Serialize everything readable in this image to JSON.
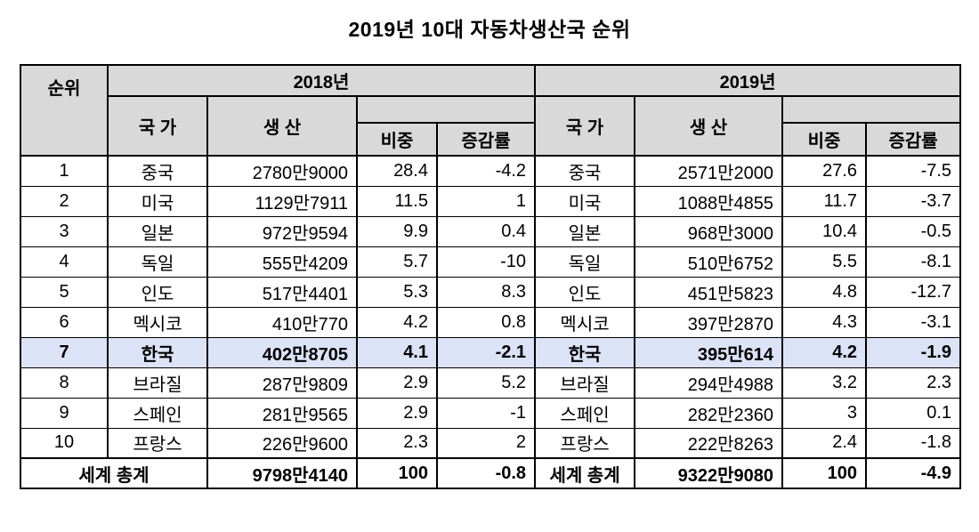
{
  "title": "2019년 10대 자동차생산국 순위",
  "colors": {
    "header_bg": "#d9d9d9",
    "highlight_bg": "#dce3f6",
    "border": "#000000"
  },
  "chart_data": {
    "type": "table",
    "title": "2019년 10대 자동차생산국 순위",
    "rank_header": "순위",
    "sections": [
      {
        "year": "2018년",
        "columns": [
          "국 가",
          "생 산",
          "비중",
          "증감률"
        ]
      },
      {
        "year": "2019년",
        "columns": [
          "국 가",
          "생 산",
          "비중",
          "증감률"
        ]
      }
    ],
    "rows": [
      {
        "rank": "1",
        "highlight": false,
        "y2018": [
          "중국",
          "2780만9000",
          "28.4",
          "-4.2"
        ],
        "y2019": [
          "중국",
          "2571만2000",
          "27.6",
          "-7.5"
        ]
      },
      {
        "rank": "2",
        "highlight": false,
        "y2018": [
          "미국",
          "1129만7911",
          "11.5",
          "1"
        ],
        "y2019": [
          "미국",
          "1088만4855",
          "11.7",
          "-3.7"
        ]
      },
      {
        "rank": "3",
        "highlight": false,
        "y2018": [
          "일본",
          "972만9594",
          "9.9",
          "0.4"
        ],
        "y2019": [
          "일본",
          "968만3000",
          "10.4",
          "-0.5"
        ]
      },
      {
        "rank": "4",
        "highlight": false,
        "y2018": [
          "독일",
          "555만4209",
          "5.7",
          "-10"
        ],
        "y2019": [
          "독일",
          "510만6752",
          "5.5",
          "-8.1"
        ]
      },
      {
        "rank": "5",
        "highlight": false,
        "y2018": [
          "인도",
          "517만4401",
          "5.3",
          "8.3"
        ],
        "y2019": [
          "인도",
          "451만5823",
          "4.8",
          "-12.7"
        ]
      },
      {
        "rank": "6",
        "highlight": false,
        "y2018": [
          "멕시코",
          "410만770",
          "4.2",
          "0.8"
        ],
        "y2019": [
          "멕시코",
          "397만2870",
          "4.3",
          "-3.1"
        ]
      },
      {
        "rank": "7",
        "highlight": true,
        "y2018": [
          "한국",
          "402만8705",
          "4.1",
          "-2.1"
        ],
        "y2019": [
          "한국",
          "395만614",
          "4.2",
          "-1.9"
        ]
      },
      {
        "rank": "8",
        "highlight": false,
        "y2018": [
          "브라질",
          "287만9809",
          "2.9",
          "5.2"
        ],
        "y2019": [
          "브라질",
          "294만4988",
          "3.2",
          "2.3"
        ]
      },
      {
        "rank": "9",
        "highlight": false,
        "y2018": [
          "스페인",
          "281만9565",
          "2.9",
          "-1"
        ],
        "y2019": [
          "스페인",
          "282만2360",
          "3",
          "0.1"
        ]
      },
      {
        "rank": "10",
        "highlight": false,
        "y2018": [
          "프랑스",
          "226만9600",
          "2.3",
          "2"
        ],
        "y2019": [
          "프랑스",
          "222만8263",
          "2.4",
          "-1.8"
        ]
      }
    ],
    "total_row": {
      "label": "세계 총계",
      "y2018": [
        "9798만4140",
        "100",
        "-0.8"
      ],
      "y2019": [
        "9322만9080",
        "100",
        "-4.9"
      ]
    }
  }
}
